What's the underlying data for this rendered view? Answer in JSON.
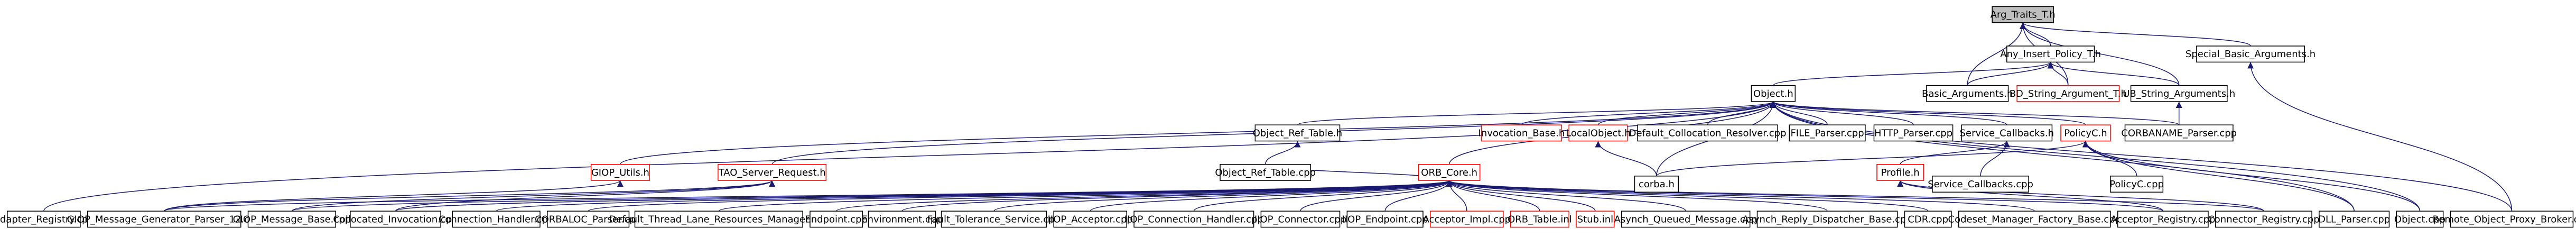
{
  "nodes": [
    {
      "label": "Arg_Traits_T.h"
    },
    {
      "label": "Any_Insert_Policy_T.h"
    },
    {
      "label": "Special_Basic_Arguments.h"
    },
    {
      "label": "Object.h"
    },
    {
      "label": "Basic_Arguments.h"
    },
    {
      "label": "BD_String_Argument_T.h"
    },
    {
      "label": "UB_String_Arguments.h"
    },
    {
      "label": "Object_Ref_Table.h"
    },
    {
      "label": "Invocation_Base.h"
    },
    {
      "label": "LocalObject.h"
    },
    {
      "label": "Default_Collocation_Resolver.cpp"
    },
    {
      "label": "FILE_Parser.cpp"
    },
    {
      "label": "HTTP_Parser.cpp"
    },
    {
      "label": "Service_Callbacks.h"
    },
    {
      "label": "PolicyC.h"
    },
    {
      "label": "CORBANAME_Parser.cpp"
    },
    {
      "label": "GIOP_Utils.h"
    },
    {
      "label": "TAO_Server_Request.h"
    },
    {
      "label": "Object_Ref_Table.cpp"
    },
    {
      "label": "ORB_Core.h"
    },
    {
      "label": "corba.h"
    },
    {
      "label": "Profile.h"
    },
    {
      "label": "Service_Callbacks.cpp"
    },
    {
      "label": "PolicyC.cpp"
    },
    {
      "label": "Adapter_Registry.cpp"
    },
    {
      "label": "GIOP_Message_Generator_Parser_12.cpp"
    },
    {
      "label": "GIOP_Message_Base.cpp"
    },
    {
      "label": "Collocated_Invocation.cpp"
    },
    {
      "label": "Connection_Handler.cpp"
    },
    {
      "label": "CORBALOC_Parser.cpp"
    },
    {
      "label": "Default_Thread_Lane_Resources_Manager.cpp"
    },
    {
      "label": "Endpoint.cpp"
    },
    {
      "label": "Environment.cpp"
    },
    {
      "label": "Fault_Tolerance_Service.cpp"
    },
    {
      "label": "IIOP_Acceptor.cpp"
    },
    {
      "label": "IIOP_Connection_Handler.cpp"
    },
    {
      "label": "IIOP_Connector.cpp"
    },
    {
      "label": "IIOP_Endpoint.cpp"
    },
    {
      "label": "Acceptor_Impl.cpp"
    },
    {
      "label": "ORB_Table.inl"
    },
    {
      "label": "Stub.inl"
    },
    {
      "label": "Asynch_Queued_Message.cpp"
    },
    {
      "label": "Asynch_Reply_Dispatcher_Base.cpp"
    },
    {
      "label": "CDR.cpp"
    },
    {
      "label": "Codeset_Manager_Factory_Base.cpp"
    },
    {
      "label": "Acceptor_Registry.cpp"
    },
    {
      "label": "Connector_Registry.cpp"
    },
    {
      "label": "DLL_Parser.cpp"
    },
    {
      "label": "Object.cpp"
    },
    {
      "label": "Remote_Object_Proxy_Broker.cpp"
    }
  ]
}
